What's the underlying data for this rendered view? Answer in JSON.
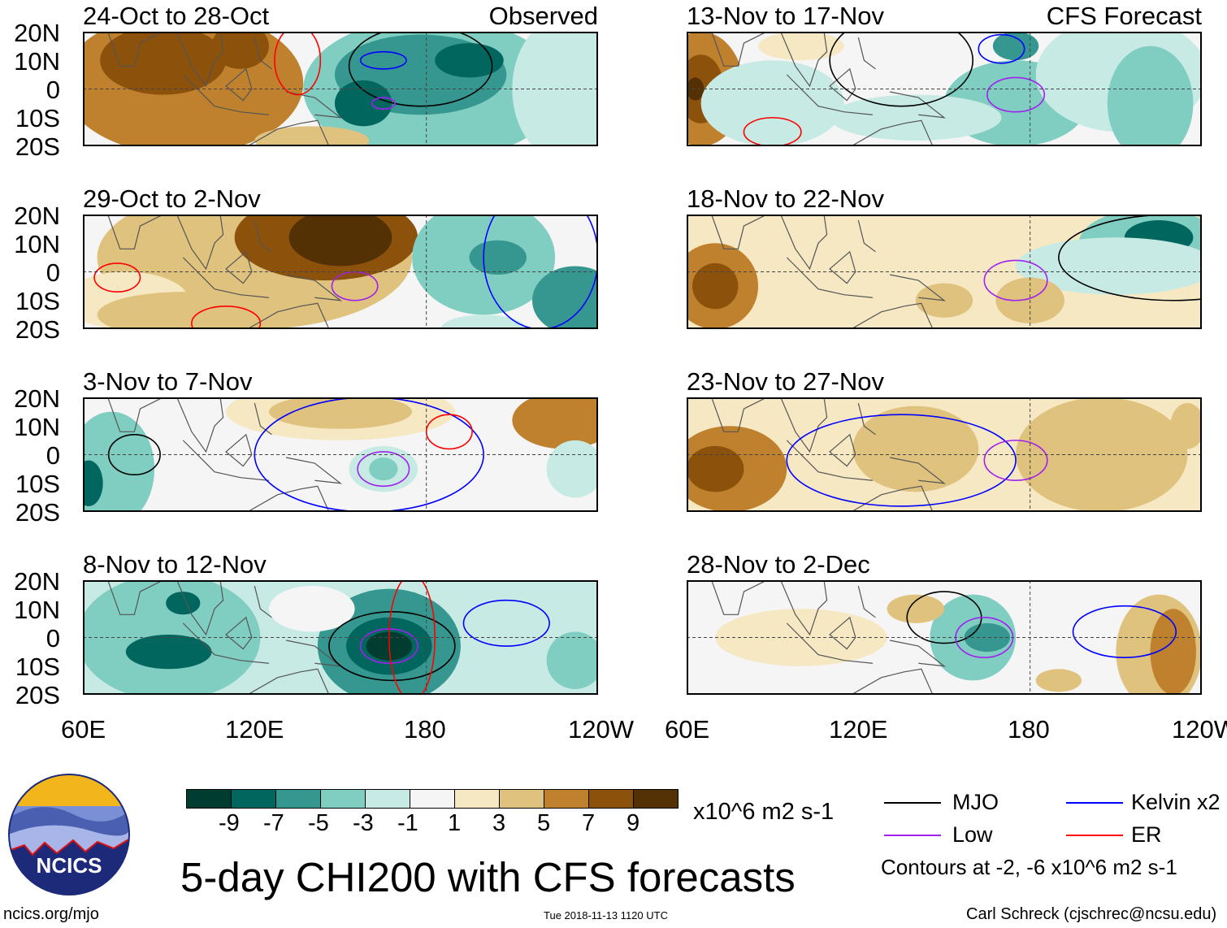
{
  "panels": [
    {
      "title": "24-Oct to 28-Oct",
      "tag": "Observed"
    },
    {
      "title": "29-Oct to 2-Nov"
    },
    {
      "title": "3-Nov to 7-Nov"
    },
    {
      "title": "8-Nov to 12-Nov"
    },
    {
      "title": "13-Nov to 17-Nov",
      "tag": "CFS Forecast"
    },
    {
      "title": "18-Nov to 22-Nov"
    },
    {
      "title": "23-Nov to 27-Nov"
    },
    {
      "title": "28-Nov to 2-Dec"
    }
  ],
  "lat_labels": [
    "20N",
    "10N",
    "0",
    "10S",
    "20S"
  ],
  "lon_labels": [
    "60E",
    "120E",
    "180",
    "120W"
  ],
  "colorbar": {
    "colors": [
      "#003c30",
      "#01665e",
      "#35978f",
      "#80cdc1",
      "#c7eae5",
      "#f5f5f5",
      "#f6e8c3",
      "#dfc27d",
      "#bf812d",
      "#8c510a",
      "#543005"
    ],
    "labels": [
      "-9",
      "-7",
      "-5",
      "-3",
      "-1",
      "1",
      "3",
      "5",
      "7",
      "9"
    ],
    "units": "x10^6 m2 s-1"
  },
  "legend": {
    "mjo": "MJO",
    "low": "Low",
    "kelvin": "Kelvin x2",
    "er": "ER",
    "colors": {
      "mjo": "#000000",
      "low": "#a020f0",
      "kelvin": "#0000ff",
      "er": "#ff0000"
    },
    "note": "Contours at -2, -6 x10^6 m2 s-1"
  },
  "title": "5-day CHI200 with CFS forecasts",
  "logo_text": "NCICS",
  "footer": {
    "left": "ncics.org/mjo",
    "center": "Tue 2018-11-13 1120 UTC",
    "right": "Carl Schreck (cjschrec@ncsu.edu)"
  }
}
